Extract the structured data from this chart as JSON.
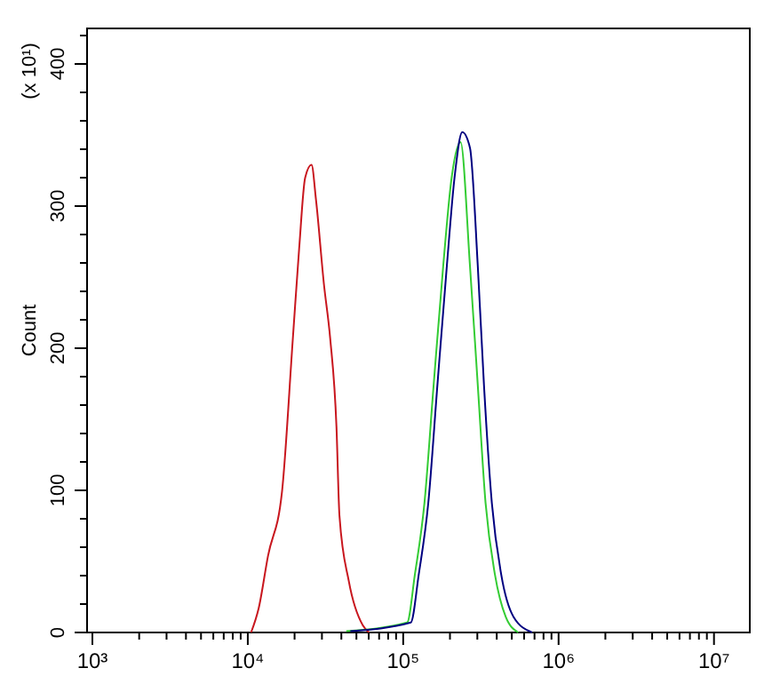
{
  "chart_data": {
    "type": "line",
    "ylabel": "Count",
    "annotations": [
      "(x 10¹)"
    ],
    "log": "x",
    "grid": false,
    "xlim": [
      924,
      17000000
    ],
    "ylim": [
      0,
      425
    ],
    "xticks": [
      {
        "value": 1000,
        "label": "10³"
      },
      {
        "value": 2000,
        "label": null
      },
      {
        "value": 3000,
        "label": null
      },
      {
        "value": 4000,
        "label": null
      },
      {
        "value": 5000,
        "label": null
      },
      {
        "value": 6000,
        "label": null
      },
      {
        "value": 7000,
        "label": null
      },
      {
        "value": 8000,
        "label": null
      },
      {
        "value": 9000,
        "label": null
      },
      {
        "value": 10000,
        "label": "10⁴"
      },
      {
        "value": 20000,
        "label": null
      },
      {
        "value": 30000,
        "label": null
      },
      {
        "value": 40000,
        "label": null
      },
      {
        "value": 50000,
        "label": null
      },
      {
        "value": 60000,
        "label": null
      },
      {
        "value": 70000,
        "label": null
      },
      {
        "value": 80000,
        "label": null
      },
      {
        "value": 90000,
        "label": null
      },
      {
        "value": 100000,
        "label": "10⁵"
      },
      {
        "value": 200000,
        "label": null
      },
      {
        "value": 300000,
        "label": null
      },
      {
        "value": 400000,
        "label": null
      },
      {
        "value": 500000,
        "label": null
      },
      {
        "value": 600000,
        "label": null
      },
      {
        "value": 700000,
        "label": null
      },
      {
        "value": 800000,
        "label": null
      },
      {
        "value": 900000,
        "label": null
      },
      {
        "value": 1000000,
        "label": "10⁶"
      },
      {
        "value": 2000000,
        "label": null
      },
      {
        "value": 3000000,
        "label": null
      },
      {
        "value": 4000000,
        "label": null
      },
      {
        "value": 5000000,
        "label": null
      },
      {
        "value": 6000000,
        "label": null
      },
      {
        "value": 7000000,
        "label": null
      },
      {
        "value": 8000000,
        "label": null
      },
      {
        "value": 9000000,
        "label": null
      },
      {
        "value": 10000000,
        "label": "10⁷"
      }
    ],
    "yticks": [
      0,
      {
        "value": 20,
        "label": null
      },
      {
        "value": 40,
        "label": null
      },
      {
        "value": 60,
        "label": null
      },
      {
        "value": 80,
        "label": null
      },
      100,
      {
        "value": 120,
        "label": null
      },
      {
        "value": 140,
        "label": null
      },
      {
        "value": 160,
        "label": null
      },
      {
        "value": 180,
        "label": null
      },
      200,
      {
        "value": 220,
        "label": null
      },
      {
        "value": 240,
        "label": null
      },
      {
        "value": 260,
        "label": null
      },
      {
        "value": 280,
        "label": null
      },
      300,
      {
        "value": 320,
        "label": null
      },
      {
        "value": 340,
        "label": null
      },
      {
        "value": 360,
        "label": null
      },
      {
        "value": 380,
        "label": null
      },
      400,
      {
        "value": 420,
        "label": null
      }
    ],
    "series": [
      {
        "color": "#c8161e",
        "x": [
          10500,
          11750,
          13500,
          16600,
          19500,
          21400,
          23400,
          25700,
          27500,
          30900,
          33900,
          37200,
          38900,
          44700,
          55000,
          60300
        ],
        "values": [
          0,
          17,
          54,
          99,
          207,
          270,
          320,
          329,
          304,
          245,
          207,
          145,
          82,
          36,
          5,
          0
        ]
      },
      {
        "color": "#33cc33",
        "x": [
          43000,
          106000,
          119000,
          137000,
          157000,
          181000,
          205000,
          234000,
          269000,
          302000,
          339000,
          389000,
          457000,
          550000
        ],
        "values": [
          1,
          7,
          41,
          91,
          174,
          258,
          320,
          345,
          258,
          174,
          91,
          41,
          11,
          0
        ]
      },
      {
        "color": "#000080",
        "x": [
          45700,
          112000,
          126000,
          145000,
          166000,
          191000,
          214000,
          240000,
          269000,
          302000,
          331000,
          372000,
          427000,
          513000,
          676000
        ],
        "values": [
          1,
          7,
          41,
          91,
          174,
          258,
          320,
          352,
          341,
          258,
          174,
          91,
          41,
          11,
          0
        ]
      }
    ]
  }
}
